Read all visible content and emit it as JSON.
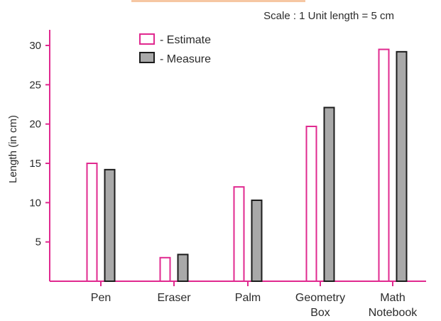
{
  "chart_data": {
    "type": "bar",
    "note": "Scale : 1 Unit length = 5 cm",
    "ylabel": "Length (in cm)",
    "xlabel": "",
    "ylim": [
      0,
      32
    ],
    "yticks": [
      "5",
      "10",
      "15",
      "20",
      "25",
      "30"
    ],
    "ytick_values": [
      5,
      10,
      15,
      20,
      25,
      30
    ],
    "categories": [
      [
        "Pen"
      ],
      [
        "Eraser"
      ],
      [
        "Palm"
      ],
      [
        "Geometry",
        "Box"
      ],
      [
        "Math",
        "Notebook"
      ]
    ],
    "series": [
      {
        "name": "- Estimate",
        "values": [
          15,
          3,
          12,
          19.7,
          29.5
        ]
      },
      {
        "name": "- Measure",
        "values": [
          14.2,
          3.4,
          10.3,
          22.1,
          29.2
        ]
      }
    ],
    "legend_position": "top-center",
    "grid": false,
    "colors": {
      "axis": "#e0298f",
      "estimate_fill": "#ffffff",
      "estimate_stroke": "#e0298f",
      "measure_fill": "#a9a9a9",
      "measure_stroke": "#1c1c1c",
      "text": "#2b2b2b",
      "top_strip": "#f6c7a3"
    }
  }
}
